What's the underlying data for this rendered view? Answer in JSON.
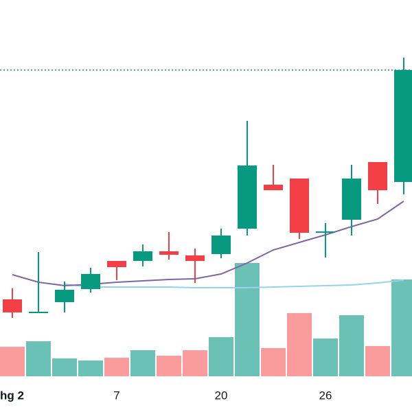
{
  "chart_data": {
    "type": "candlestick",
    "categories": [
      "hg 2",
      null,
      null,
      null,
      "7",
      null,
      null,
      null,
      "20",
      null,
      null,
      null,
      "26",
      null,
      null,
      null
    ],
    "open": [
      164,
      145,
      160,
      179,
      220,
      220,
      234,
      228,
      230,
      267,
      331,
      340,
      261,
      280,
      364,
      335
    ],
    "close": [
      145,
      146,
      178,
      201,
      211,
      234,
      229,
      220,
      257,
      359,
      323,
      261,
      263,
      340,
      323,
      498
    ],
    "high": [
      180,
      233,
      190,
      210,
      220,
      244,
      262,
      238,
      267,
      424,
      360,
      340,
      275,
      360,
      364,
      516
    ],
    "low": [
      137,
      144,
      145,
      174,
      192,
      212,
      222,
      188,
      224,
      257,
      323,
      252,
      225,
      257,
      303,
      317
    ],
    "volume": [
      43,
      51,
      26,
      23,
      27,
      38,
      30,
      38,
      57,
      165,
      41,
      92,
      55,
      89,
      44,
      141
    ],
    "ma": {
      "color": "#7e64a8",
      "values": [
        200,
        189,
        184,
        186,
        189,
        191,
        193,
        194,
        201,
        217,
        236,
        247,
        258,
        270,
        281,
        307
      ]
    },
    "ma2": {
      "color": "#92d3f0",
      "values": [
        null,
        null,
        186,
        182,
        182,
        182,
        182,
        181,
        181,
        181,
        182,
        183,
        184,
        185,
        188,
        192
      ]
    },
    "up_color": "#089981",
    "down_color": "#f23f45",
    "volume_up_color": "#6bc1b5",
    "volume_down_color": "#fa9c9c",
    "price_line": true,
    "ylim": [
      0,
      600
    ],
    "y2lim": [
      0,
      548
    ]
  }
}
